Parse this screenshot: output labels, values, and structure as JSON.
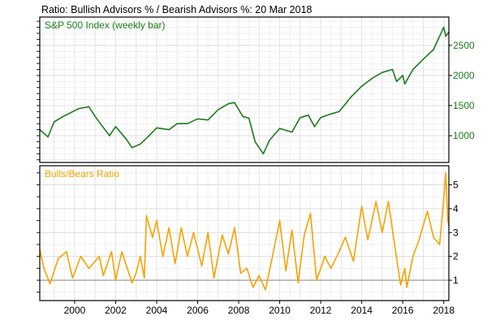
{
  "chart_data": [
    {
      "type": "line",
      "title": "Ratio: Bullish Advisors % / Bearish Advisors %: 20 Mar 2018",
      "label": "S&P 500 Index (weekly bar)",
      "color": "#1a7d1a",
      "ylim": [
        555,
        2970
      ],
      "yticks": [
        1000,
        1500,
        2000,
        2500
      ],
      "xlim": [
        1998.3,
        2018.25
      ],
      "grid": true,
      "x": [
        1998.3,
        1998.7,
        1999.0,
        1999.5,
        2000.2,
        2000.7,
        2001.0,
        2001.3,
        2001.7,
        2002.0,
        2002.5,
        2002.8,
        2003.2,
        2003.6,
        2004.0,
        2004.6,
        2005.0,
        2005.5,
        2006.0,
        2006.5,
        2007.0,
        2007.5,
        2007.8,
        2008.2,
        2008.5,
        2008.8,
        2009.2,
        2009.5,
        2010.0,
        2010.4,
        2010.6,
        2011.0,
        2011.4,
        2011.7,
        2012.0,
        2012.5,
        2012.9,
        2013.5,
        2014.0,
        2014.5,
        2015.0,
        2015.5,
        2015.7,
        2016.0,
        2016.1,
        2016.5,
        2017.0,
        2017.5,
        2018.0,
        2018.1,
        2018.25
      ],
      "values": [
        1100,
        980,
        1230,
        1330,
        1450,
        1480,
        1320,
        1180,
        1000,
        1150,
        950,
        800,
        860,
        990,
        1130,
        1100,
        1200,
        1200,
        1280,
        1260,
        1430,
        1530,
        1550,
        1320,
        1290,
        900,
        700,
        920,
        1120,
        1080,
        1060,
        1300,
        1340,
        1150,
        1300,
        1360,
        1400,
        1650,
        1820,
        1950,
        2050,
        2100,
        1900,
        2000,
        1860,
        2100,
        2270,
        2430,
        2800,
        2650,
        2720
      ]
    },
    {
      "type": "line",
      "label": "Bulls/Bears Ratio",
      "color": "#f5a300",
      "ylim": [
        0.15,
        5.8
      ],
      "yticks": [
        1,
        2,
        3,
        4,
        5
      ],
      "reference_line": 1,
      "xlim": [
        1998.3,
        2018.25
      ],
      "xticks": [
        "2000",
        "2002",
        "2004",
        "2006",
        "2008",
        "2010",
        "2012",
        "2014",
        "2016",
        "2018"
      ],
      "grid": true,
      "x": [
        1998.3,
        1998.5,
        1998.8,
        1999.2,
        1999.6,
        1999.9,
        2000.3,
        2000.7,
        2001.2,
        2001.4,
        2001.8,
        2002.0,
        2002.3,
        2002.8,
        2003.0,
        2003.2,
        2003.4,
        2003.5,
        2003.8,
        2004.0,
        2004.3,
        2004.6,
        2004.9,
        2005.2,
        2005.5,
        2005.8,
        2006.2,
        2006.5,
        2006.8,
        2007.2,
        2007.5,
        2007.8,
        2008.1,
        2008.4,
        2008.7,
        2009.0,
        2009.3,
        2009.6,
        2010.0,
        2010.3,
        2010.6,
        2010.9,
        2011.2,
        2011.5,
        2011.8,
        2012.2,
        2012.5,
        2012.9,
        2013.2,
        2013.6,
        2014.0,
        2014.3,
        2014.7,
        2015.0,
        2015.3,
        2015.6,
        2015.9,
        2016.1,
        2016.2,
        2016.5,
        2016.8,
        2017.2,
        2017.5,
        2017.8,
        2018.0,
        2018.1,
        2018.2,
        2018.25
      ],
      "values": [
        2.3,
        1.5,
        0.85,
        1.9,
        2.2,
        1.1,
        2.0,
        1.5,
        2.0,
        1.2,
        2.2,
        1.0,
        2.2,
        0.9,
        1.3,
        2.0,
        1.1,
        3.7,
        2.8,
        3.5,
        2.0,
        3.2,
        1.7,
        3.2,
        2.0,
        3.0,
        1.6,
        3.0,
        1.1,
        2.9,
        2.1,
        3.2,
        1.3,
        1.5,
        0.7,
        1.2,
        0.6,
        1.8,
        3.5,
        1.4,
        3.1,
        0.9,
        2.9,
        3.8,
        1.0,
        2.0,
        1.5,
        2.2,
        2.8,
        1.8,
        4.1,
        2.7,
        4.3,
        3.0,
        4.3,
        2.5,
        0.8,
        1.5,
        0.7,
        2.0,
        2.7,
        3.9,
        2.8,
        2.5,
        4.4,
        5.5,
        3.5,
        3.3
      ]
    }
  ]
}
